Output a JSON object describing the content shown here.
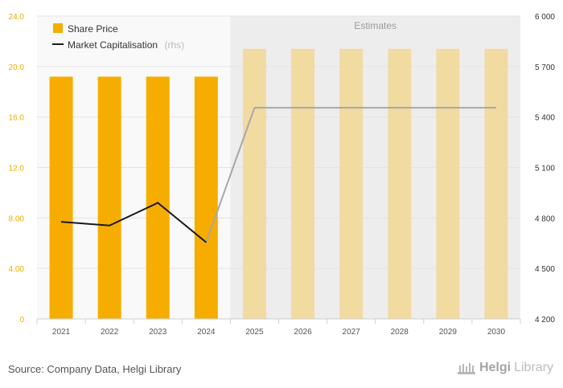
{
  "chart_data": {
    "type": "bar",
    "categories": [
      "2021",
      "2022",
      "2023",
      "2024",
      "2025",
      "2026",
      "2027",
      "2028",
      "2029",
      "2030"
    ],
    "estimates_start_index": 4,
    "estimates_label": "Estimates",
    "series": [
      {
        "name": "Share Price",
        "type": "bar",
        "axis": "left",
        "values": [
          19.2,
          19.2,
          19.2,
          19.2,
          21.4,
          21.4,
          21.4,
          21.4,
          21.4,
          21.4
        ]
      },
      {
        "name": "Market Capitalisation",
        "name_suffix": "(rhs)",
        "type": "line",
        "axis": "right",
        "values": [
          4777,
          4755,
          4890,
          4655,
          5455,
          5455,
          5455,
          5455,
          5455,
          5455
        ]
      }
    ],
    "y_left": {
      "min": 0,
      "max": 24,
      "ticks": [
        "0",
        "4.00",
        "8.00",
        "12.0",
        "16.0",
        "20.0",
        "24.0"
      ]
    },
    "y_right": {
      "min": 4200,
      "max": 6000,
      "ticks": [
        "4 200",
        "4 500",
        "4 800",
        "5 100",
        "5 400",
        "5 700",
        "6 000"
      ]
    },
    "grid": true,
    "legend_position": "top-left"
  },
  "colors": {
    "bar_actual": "#f7ad00",
    "bar_estimate": "#f2dba1",
    "line_actual": "#1a1a1a",
    "line_estimate": "#a7a7a7",
    "estimate_bg": "#ededed",
    "plot_bg": "#f9f9f9"
  },
  "footer": {
    "source": "Source: Company Data, Helgi Library",
    "brand_first": "Helgi",
    "brand_second": "Library"
  }
}
